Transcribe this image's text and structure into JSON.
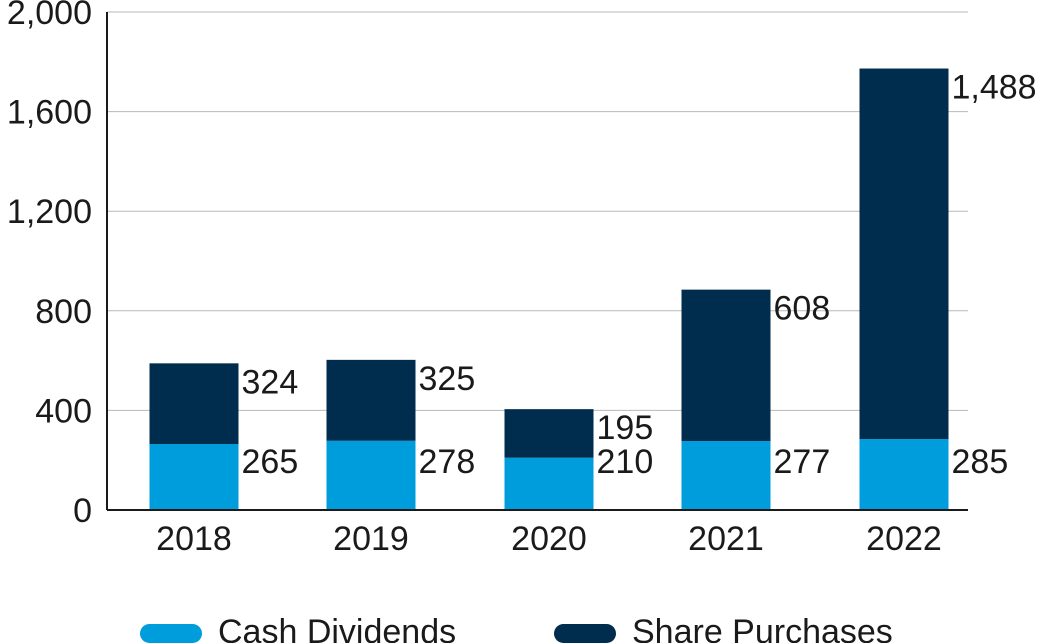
{
  "chart_data": {
    "type": "bar",
    "stacked": true,
    "title": "",
    "xlabel": "",
    "ylabel": "",
    "categories": [
      "2018",
      "2019",
      "2020",
      "2021",
      "2022"
    ],
    "series": [
      {
        "name": "Cash Dividends",
        "values": [
          265,
          278,
          210,
          277,
          285
        ],
        "labels": [
          "265",
          "278",
          "210",
          "277",
          "285"
        ],
        "color": "#009ddc"
      },
      {
        "name": "Share Purchases",
        "values": [
          324,
          325,
          195,
          608,
          1488
        ],
        "labels": [
          "324",
          "325",
          "195",
          "608",
          "1,488"
        ],
        "color": "#002d4d"
      }
    ],
    "ylim": [
      0,
      2000
    ],
    "yticks": [
      0,
      400,
      800,
      1200,
      1600,
      2000
    ],
    "ytick_labels": [
      "0",
      "400",
      "800",
      "1,200",
      "1,600",
      "2,000"
    ],
    "grid": true,
    "legend_position": "bottom"
  }
}
